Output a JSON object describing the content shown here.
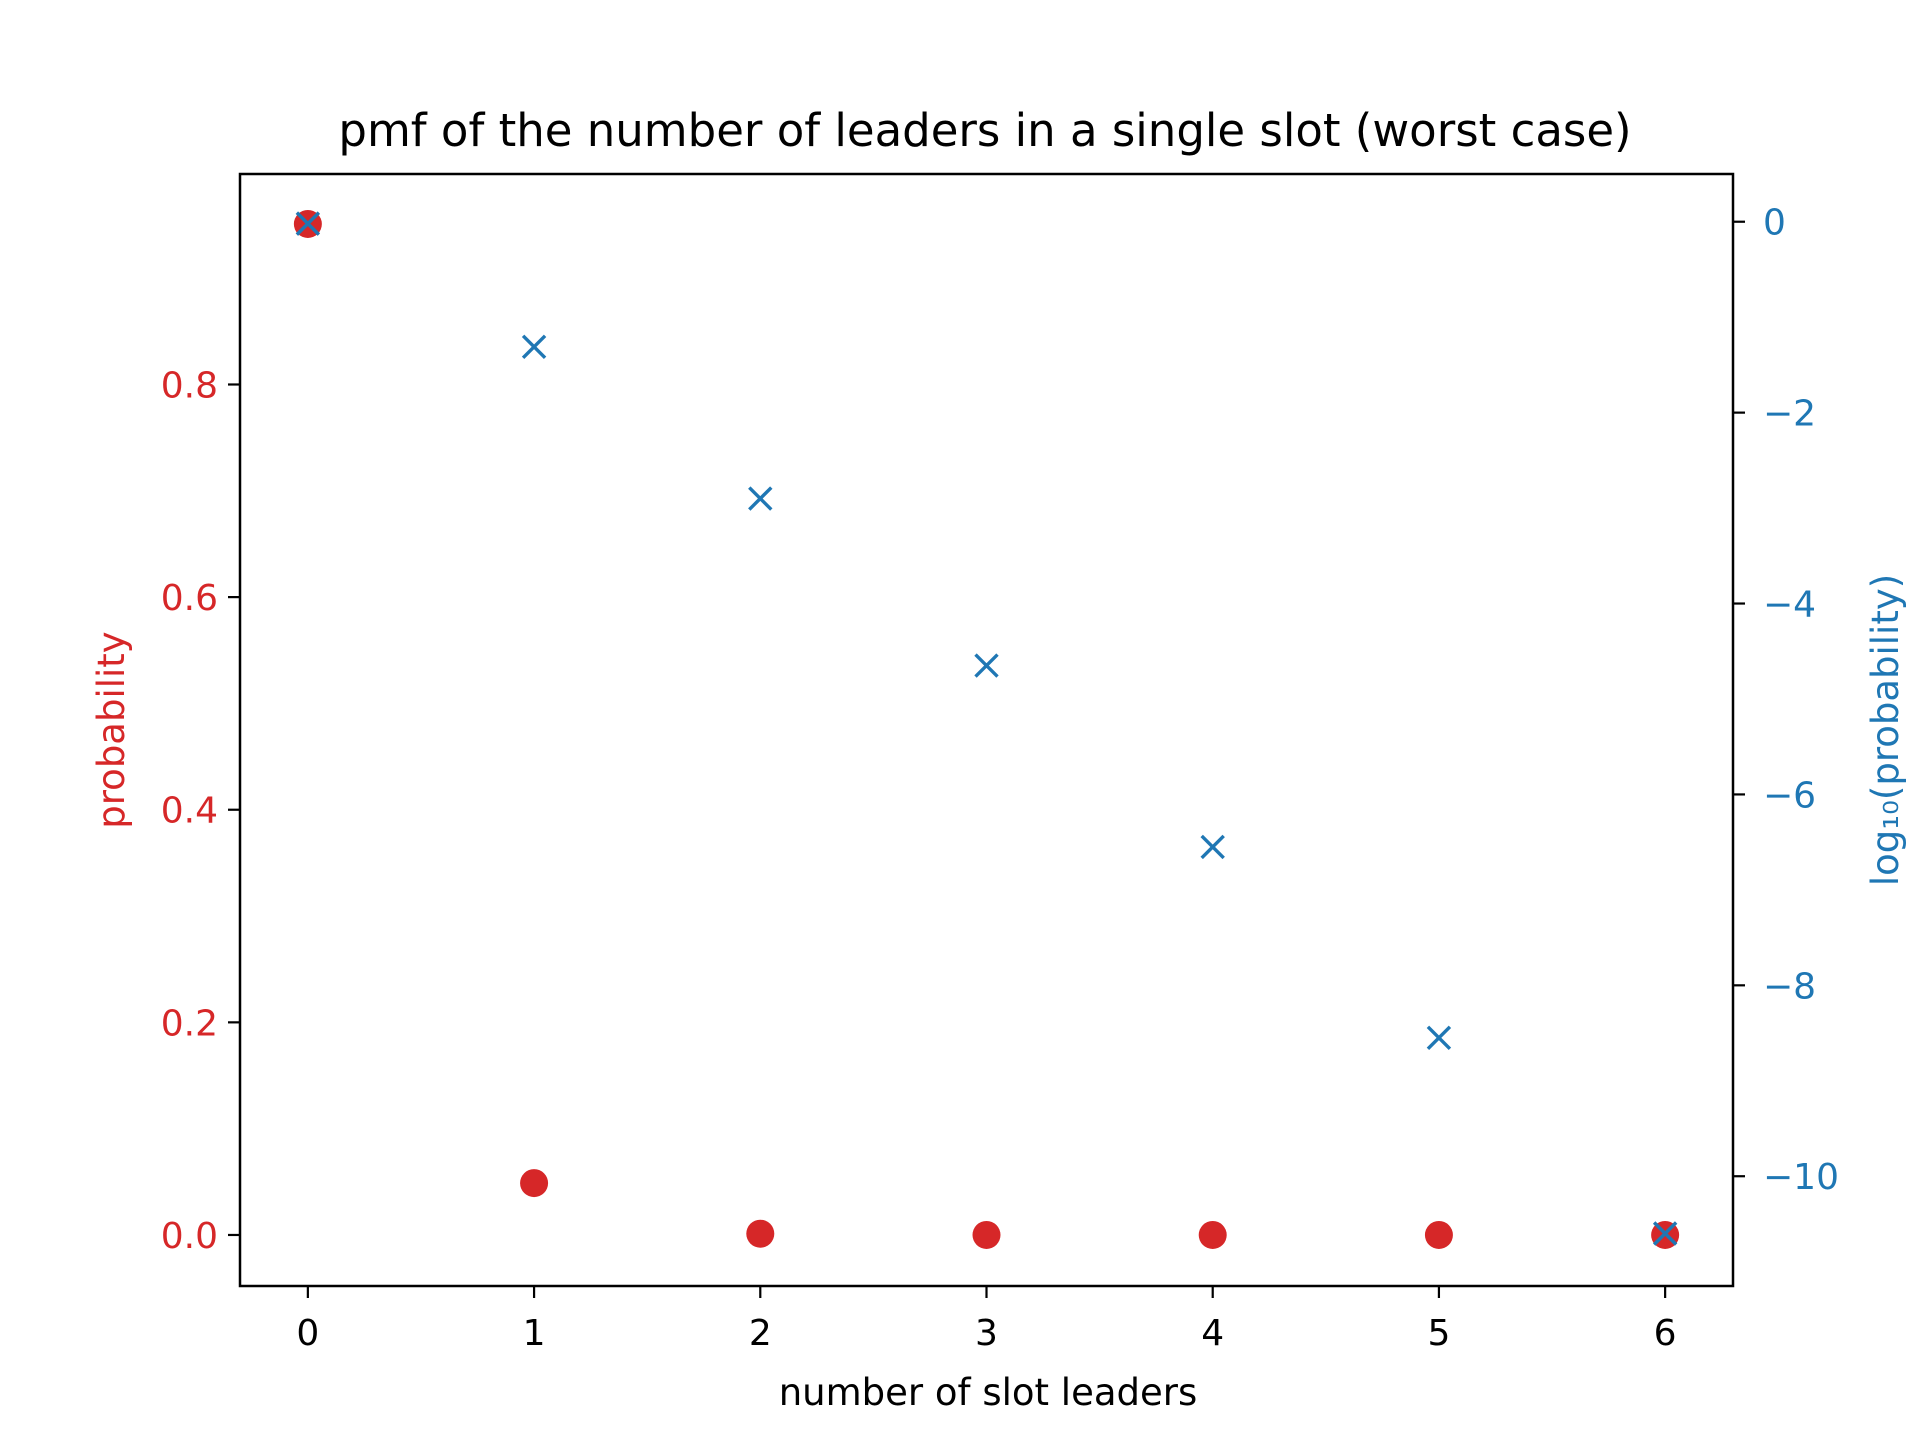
{
  "chart_data": {
    "type": "scatter",
    "title": "pmf of the number of leaders in a single slot (worst case)",
    "xlabel": "number of slot leaders",
    "ylabel_left": "probability",
    "ylabel_right": "log₁₀(probability)",
    "x": [
      0,
      1,
      2,
      3,
      4,
      5,
      6
    ],
    "xlim": [
      -0.3,
      6.3
    ],
    "ylim_left": [
      -0.048,
      0.998
    ],
    "ylim_right": [
      -11.15,
      0.5
    ],
    "x_ticks": [
      0,
      1,
      2,
      3,
      4,
      5,
      6
    ],
    "x_tick_labels": [
      "0",
      "1",
      "2",
      "3",
      "4",
      "5",
      "6"
    ],
    "y_left_ticks": [
      0.0,
      0.2,
      0.4,
      0.6,
      0.8
    ],
    "y_left_tick_labels": [
      "0.0",
      "0.2",
      "0.4",
      "0.6",
      "0.8"
    ],
    "y_right_ticks": [
      0,
      -2,
      -4,
      -6,
      -8,
      -10
    ],
    "y_right_tick_labels": [
      "0",
      "−2",
      "−4",
      "−6",
      "−8",
      "−10"
    ],
    "grid": false,
    "series": [
      {
        "axis": "left",
        "marker": "circle",
        "color": "#d62728",
        "values": [
          0.951,
          0.0488,
          0.0012,
          2e-05,
          0.0,
          0.0,
          0.0
        ]
      },
      {
        "axis": "right",
        "marker": "x",
        "color": "#1f77b4",
        "values": [
          -0.02,
          -1.31,
          -2.9,
          -4.65,
          -6.55,
          -8.55,
          -10.6
        ]
      }
    ]
  }
}
